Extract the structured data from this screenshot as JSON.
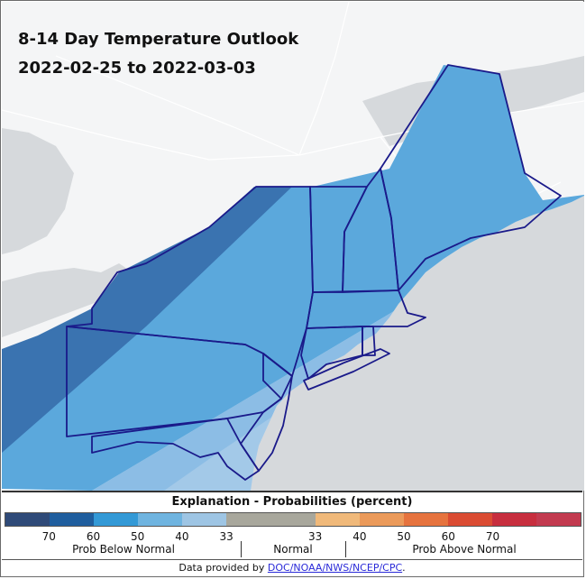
{
  "title": {
    "line1": "8-14 Day Temperature Outlook",
    "line2": "2022-02-25 to 2022-03-03"
  },
  "colors": {
    "ocean": "#d6d9dc",
    "land": "#f4f5f6",
    "roads": "#ffffff",
    "state_border": "#1a1a8a",
    "prob_below_60": "#3a73b0",
    "prob_below_50": "#5ba8dc",
    "prob_below_40": "#8cbde5",
    "prob_below_33": "#b2d0ea"
  },
  "legend": {
    "title": "Explanation - Probabilities (percent)",
    "swatches": [
      "#2f4a78",
      "#1f5e9e",
      "#3399d6",
      "#6fb4e0",
      "#9ec5e4",
      "#a8a79c",
      "#a8a79c",
      "#f0b97a",
      "#eb9a5a",
      "#e6733e",
      "#da4b32",
      "#c72e3e",
      "#c23a4f"
    ],
    "ticks": [
      "70",
      "60",
      "50",
      "40",
      "33",
      "33",
      "40",
      "50",
      "60",
      "70"
    ],
    "groups": {
      "below": "Prob Below Normal",
      "normal": "Normal",
      "above": "Prob Above Normal"
    }
  },
  "credit": {
    "prefix": "Data provided by ",
    "link": "DOC/NOAA/NWS/NCEP/CPC",
    "suffix": "."
  }
}
